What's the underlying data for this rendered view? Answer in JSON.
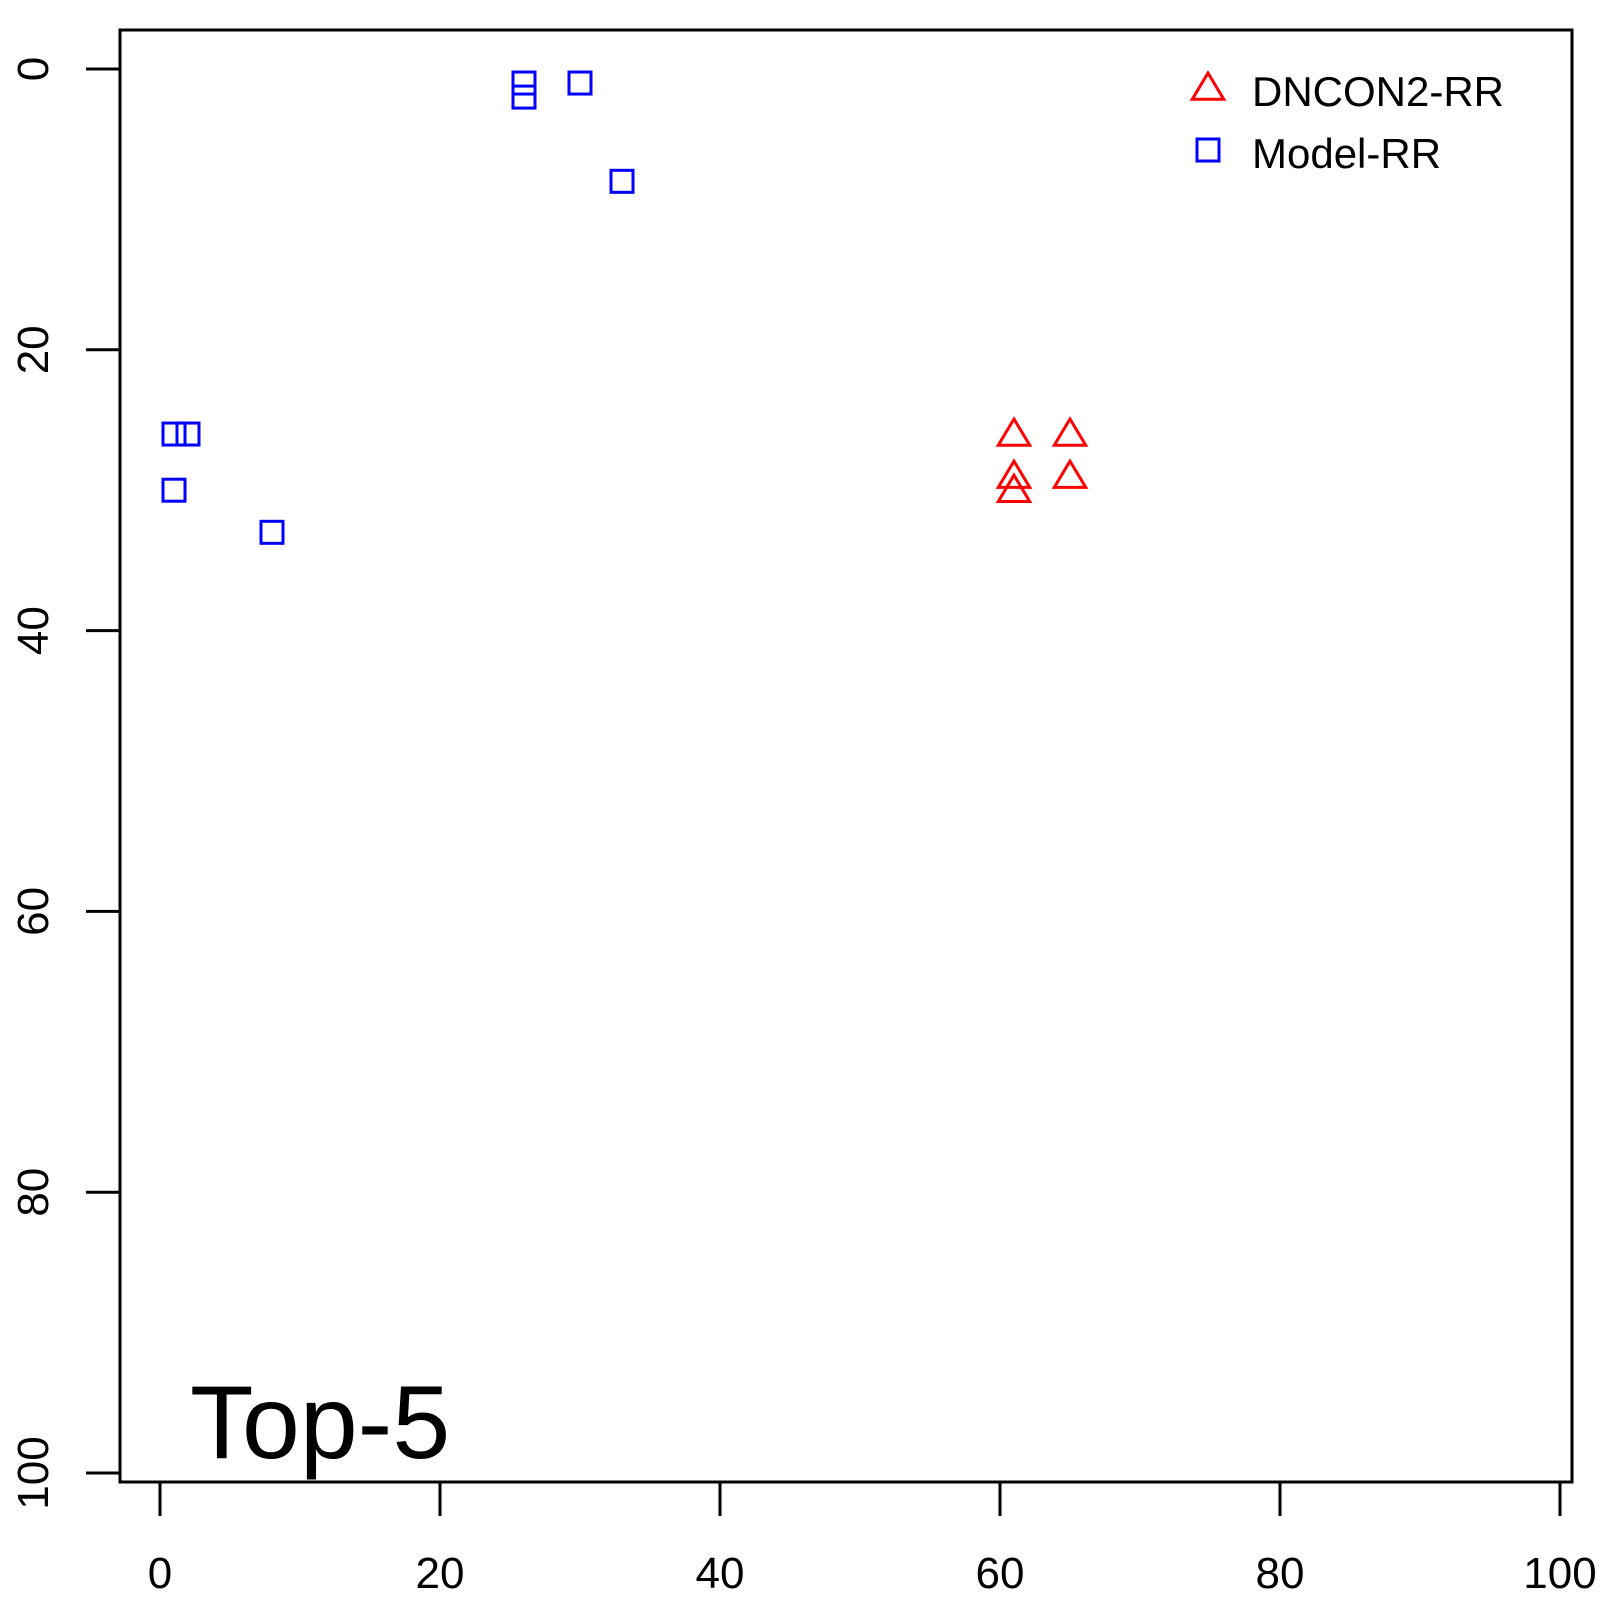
{
  "chart_data": {
    "type": "scatter",
    "panel_label": "Top-5",
    "xlim": [
      0,
      100
    ],
    "ylim": [
      0,
      100
    ],
    "y_reversed": true,
    "x_ticks": [
      0,
      20,
      40,
      60,
      80,
      100
    ],
    "y_ticks": [
      0,
      20,
      40,
      60,
      80,
      100
    ],
    "legend_position": "top-right",
    "series": [
      {
        "name": "DNCON2-RR",
        "marker": "triangle",
        "color": "#ff0000",
        "points": [
          [
            61,
            26
          ],
          [
            65,
            26
          ],
          [
            61,
            29
          ],
          [
            65,
            29
          ],
          [
            61,
            30
          ]
        ]
      },
      {
        "name": "Model-RR",
        "marker": "square",
        "color": "#0000ff",
        "points": [
          [
            26,
            1
          ],
          [
            26,
            2
          ],
          [
            30,
            1
          ],
          [
            33,
            8
          ],
          [
            1,
            26
          ],
          [
            2,
            26
          ],
          [
            1,
            30
          ],
          [
            8,
            33
          ]
        ]
      }
    ]
  }
}
